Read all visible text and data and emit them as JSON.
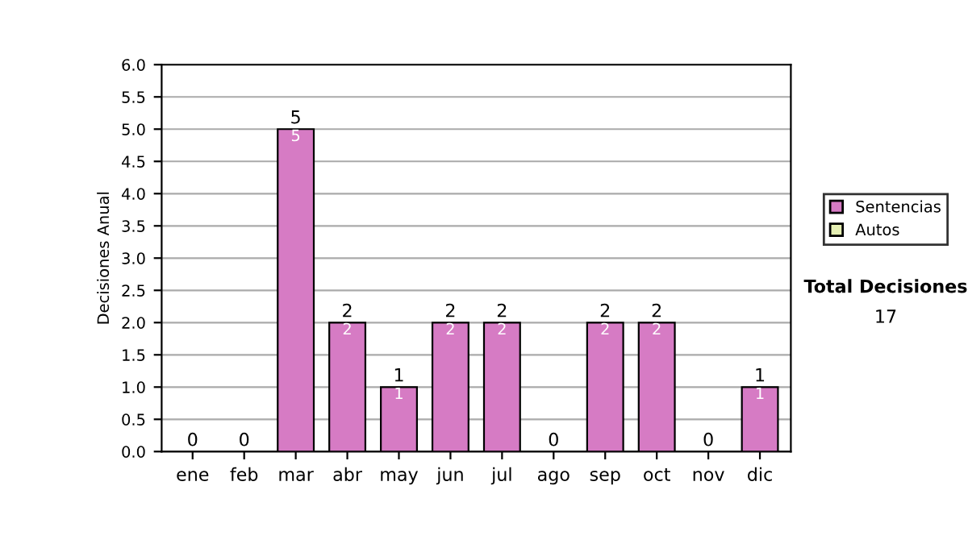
{
  "chart_data": {
    "type": "bar",
    "stacked": true,
    "ylabel": "Decisiones Anual",
    "categories": [
      "ene",
      "feb",
      "mar",
      "abr",
      "may",
      "jun",
      "jul",
      "ago",
      "sep",
      "oct",
      "nov",
      "dic"
    ],
    "series": [
      {
        "name": "Sentencias",
        "color": "#d67bc4",
        "values": [
          0,
          0,
          5,
          2,
          1,
          2,
          2,
          0,
          2,
          2,
          0,
          1
        ],
        "value_labels": [
          null,
          null,
          "5",
          "2",
          "1",
          "2",
          "2",
          null,
          "2",
          "2",
          null,
          "1"
        ]
      },
      {
        "name": "Autos",
        "color": "#e6f0b4",
        "values": [
          0,
          0,
          0,
          0,
          0,
          0,
          0,
          0,
          0,
          0,
          0,
          0
        ]
      }
    ],
    "totals": [
      "0",
      "0",
      "5",
      "2",
      "1",
      "2",
      "2",
      "0",
      "2",
      "2",
      "0",
      "1"
    ],
    "ylim": [
      0,
      6
    ],
    "yticks": [
      {
        "value": 0,
        "label": "0.0"
      },
      {
        "value": 0.5,
        "label": "0.5"
      },
      {
        "value": 1,
        "label": "1.0"
      },
      {
        "value": 1.5,
        "label": "1.5"
      },
      {
        "value": 2,
        "label": "2.0"
      },
      {
        "value": 2.5,
        "label": "2.5"
      },
      {
        "value": 3,
        "label": "3.0"
      },
      {
        "value": 3.5,
        "label": "3.5"
      },
      {
        "value": 4,
        "label": "4.0"
      },
      {
        "value": 4.5,
        "label": "4.5"
      },
      {
        "value": 5,
        "label": "5.0"
      },
      {
        "value": 5.5,
        "label": "5.5"
      },
      {
        "value": 6,
        "label": "6.0"
      }
    ],
    "grid": "y",
    "legend": "right",
    "annotations": [
      "Total Decisiones",
      "17"
    ]
  }
}
